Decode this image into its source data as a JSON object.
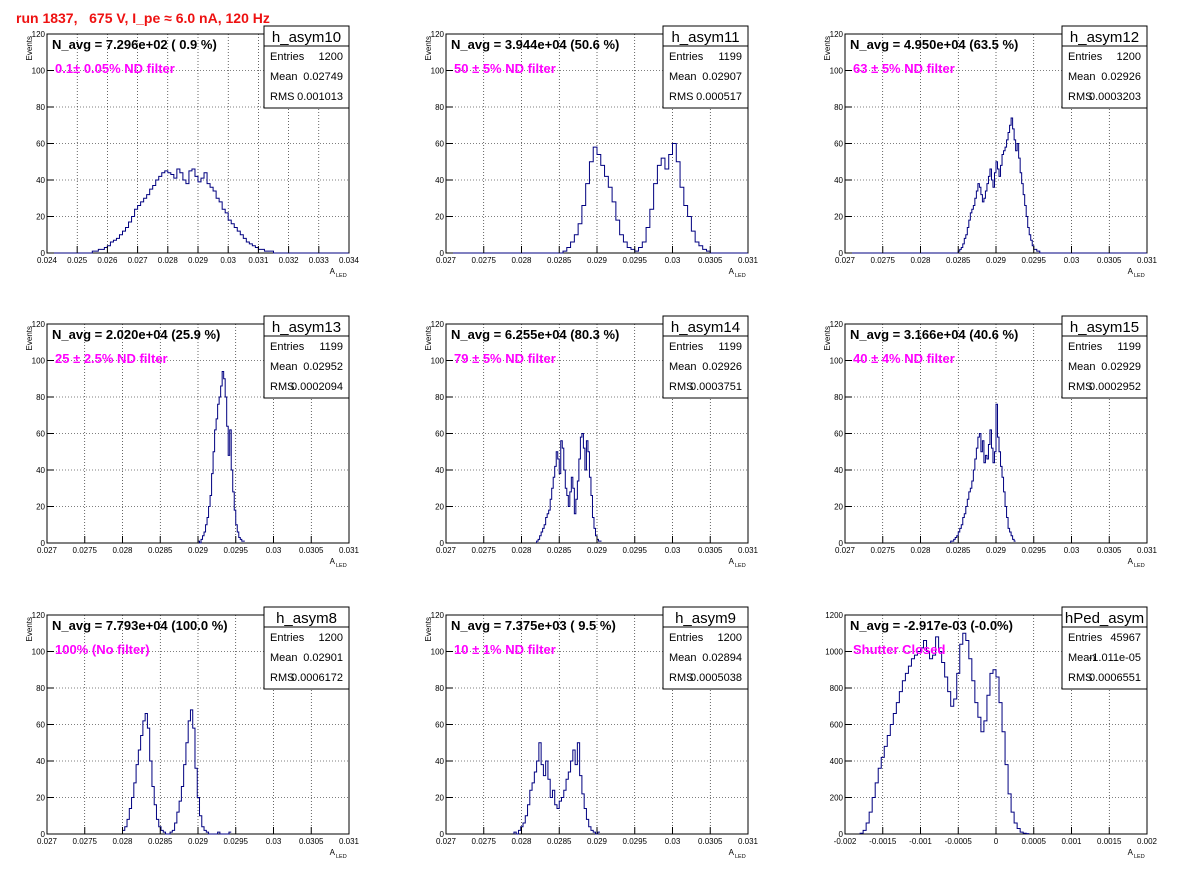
{
  "run_title": "run 1837,   675 V, I_pe ≈ 6.0 nA, 120 Hz",
  "colors": {
    "hist": "#000080",
    "filter_text": "#ff00ff",
    "title": "#ee1111",
    "grid": "#000000"
  },
  "chart_data": [
    {
      "type": "histogram",
      "name": "h_asym10",
      "stats": {
        "Entries": "1200",
        "Mean": "0.02749",
        "RMS": "0.001013"
      },
      "navg_label": "N_avg = 7.296e+02 ( 0.9 %)",
      "filter_label": "0.1± 0.05% ND filter",
      "xlabel": "A",
      "xlabel_sub": "LED",
      "ylabel": "Events",
      "xlim": [
        0.024,
        0.034
      ],
      "ylim": [
        0,
        120
      ],
      "grid": true,
      "xticks": [
        0.024,
        0.025,
        0.026,
        0.027,
        0.028,
        0.029,
        0.03,
        0.031,
        0.032,
        0.033,
        0.034
      ],
      "xtick_labels": [
        "0.024",
        "0.025",
        "0.026",
        "0.027",
        "0.028",
        "0.029",
        "0.03",
        "0.031",
        "0.032",
        "0.033",
        "0.034"
      ],
      "yticks": [
        0,
        20,
        40,
        60,
        80,
        100,
        120
      ],
      "ytick_labels": [
        "0",
        "20",
        "40",
        "60",
        "80",
        "100",
        "120"
      ],
      "bin_start": 0.024,
      "bin_width": 0.0001,
      "counts": [
        0,
        0,
        0,
        0,
        0,
        0,
        0,
        0,
        0,
        0,
        0,
        0,
        0,
        0,
        0,
        1,
        1,
        2,
        2,
        3,
        4,
        6,
        7,
        8,
        10,
        12,
        14,
        17,
        20,
        24,
        26,
        28,
        30,
        32,
        35,
        37,
        40,
        42,
        44,
        45,
        44,
        43,
        41,
        46,
        44,
        40,
        38,
        45,
        46,
        42,
        39,
        41,
        44,
        38,
        36,
        34,
        30,
        28,
        24,
        22,
        18,
        16,
        14,
        12,
        10,
        8,
        6,
        5,
        4,
        3,
        2,
        2,
        1,
        1,
        1,
        0,
        0,
        0,
        0,
        0,
        0,
        0,
        0,
        0,
        0,
        0,
        0,
        0,
        0,
        0,
        0,
        0,
        0,
        0,
        0,
        0,
        0,
        0,
        0,
        0
      ]
    },
    {
      "type": "histogram",
      "name": "h_asym11",
      "stats": {
        "Entries": "1199",
        "Mean": "0.02907",
        "RMS": "0.000517"
      },
      "navg_label": "N_avg = 3.944e+04 (50.6 %)",
      "filter_label": "50 ± 5% ND filter",
      "xlabel": "A",
      "xlabel_sub": "LED",
      "ylabel": "Events",
      "xlim": [
        0.027,
        0.031
      ],
      "ylim": [
        0,
        120
      ],
      "grid": true,
      "xticks": [
        0.027,
        0.0275,
        0.028,
        0.0285,
        0.029,
        0.0295,
        0.03,
        0.0305,
        0.031
      ],
      "xtick_labels": [
        "0.027",
        "0.0275",
        "0.028",
        "0.0285",
        "0.029",
        "0.0295",
        "0.03",
        "0.0305",
        "0.031"
      ],
      "yticks": [
        0,
        20,
        40,
        60,
        80,
        100,
        120
      ],
      "ytick_labels": [
        "0",
        "20",
        "40",
        "60",
        "80",
        "100",
        "120"
      ],
      "bin_start": 0.027,
      "bin_width": 5e-05,
      "counts": [
        0,
        0,
        0,
        0,
        0,
        0,
        0,
        0,
        0,
        0,
        0,
        0,
        0,
        0,
        0,
        0,
        0,
        0,
        0,
        0,
        0,
        0,
        0,
        0,
        0,
        0,
        0,
        0,
        0,
        0,
        0,
        1,
        3,
        6,
        10,
        16,
        26,
        38,
        50,
        58,
        54,
        48,
        42,
        36,
        28,
        18,
        10,
        6,
        3,
        2,
        1,
        3,
        6,
        14,
        24,
        38,
        48,
        52,
        46,
        54,
        60,
        50,
        36,
        26,
        20,
        12,
        6,
        4,
        2,
        1,
        0,
        0,
        0,
        0,
        0,
        0,
        0,
        0,
        0,
        0
      ]
    },
    {
      "type": "histogram",
      "name": "h_asym12",
      "stats": {
        "Entries": "1200",
        "Mean": "0.02926",
        "RMS": "0.0003203"
      },
      "navg_label": "N_avg = 4.950e+04 (63.5 %)",
      "filter_label": "63 ± 5% ND filter",
      "xlabel": "A",
      "xlabel_sub": "LED",
      "ylabel": "Events",
      "xlim": [
        0.027,
        0.031
      ],
      "ylim": [
        0,
        120
      ],
      "grid": true,
      "xticks": [
        0.027,
        0.0275,
        0.028,
        0.0285,
        0.029,
        0.0295,
        0.03,
        0.0305,
        0.031
      ],
      "xtick_labels": [
        "0.027",
        "0.0275",
        "0.028",
        "0.0285",
        "0.029",
        "0.0295",
        "0.03",
        "0.0305",
        "0.031"
      ],
      "yticks": [
        0,
        20,
        40,
        60,
        80,
        100,
        120
      ],
      "ytick_labels": [
        "0",
        "20",
        "40",
        "60",
        "80",
        "100",
        "120"
      ],
      "bin_start": 0.027,
      "bin_width": 2e-05,
      "counts": [
        0,
        0,
        0,
        0,
        0,
        0,
        0,
        0,
        0,
        0,
        0,
        0,
        0,
        0,
        0,
        0,
        0,
        0,
        0,
        0,
        0,
        0,
        0,
        0,
        0,
        0,
        0,
        0,
        0,
        0,
        0,
        0,
        0,
        0,
        0,
        0,
        0,
        0,
        0,
        0,
        0,
        0,
        0,
        0,
        0,
        0,
        0,
        0,
        0,
        0,
        0,
        0,
        0,
        0,
        0,
        0,
        0,
        0,
        0,
        0,
        0,
        0,
        0,
        0,
        0,
        0,
        0,
        0,
        0,
        0,
        0,
        0,
        0,
        0,
        0,
        1,
        2,
        3,
        5,
        8,
        10,
        14,
        18,
        22,
        24,
        26,
        30,
        34,
        38,
        36,
        32,
        28,
        30,
        34,
        38,
        42,
        46,
        40,
        36,
        44,
        50,
        46,
        42,
        48,
        54,
        56,
        58,
        62,
        66,
        70,
        74,
        68,
        62,
        56,
        60,
        52,
        44,
        38,
        32,
        26,
        20,
        14,
        10,
        7,
        4,
        2,
        2,
        1,
        1,
        0,
        0,
        0,
        0,
        0,
        0,
        0,
        0,
        0,
        0,
        0,
        0,
        0,
        0,
        0,
        0,
        0,
        0,
        0,
        0,
        0,
        0,
        0,
        0,
        0,
        0,
        0,
        0,
        0,
        0,
        0,
        0,
        0,
        0,
        0,
        0,
        0,
        0,
        0,
        0,
        0,
        0,
        0,
        0,
        0,
        0,
        0,
        0,
        0,
        0,
        0,
        0,
        0,
        0,
        0,
        0,
        0,
        0,
        0,
        0,
        0,
        0,
        0,
        0,
        0,
        0,
        0,
        0,
        0,
        0,
        0,
        0,
        0,
        0,
        0,
        0,
        0,
        0,
        0,
        0,
        0
      ]
    },
    {
      "type": "histogram",
      "name": "h_asym13",
      "stats": {
        "Entries": "1199",
        "Mean": "0.02952",
        "RMS": "0.0002094"
      },
      "navg_label": "N_avg = 2.020e+04 (25.9 %)",
      "filter_label": "25 ± 2.5% ND filter",
      "xlabel": "A",
      "xlabel_sub": "LED",
      "ylabel": "Events",
      "xlim": [
        0.027,
        0.031
      ],
      "ylim": [
        0,
        120
      ],
      "grid": true,
      "xticks": [
        0.027,
        0.0275,
        0.028,
        0.0285,
        0.029,
        0.0295,
        0.03,
        0.0305,
        0.031
      ],
      "xtick_labels": [
        "0.027",
        "0.0275",
        "0.028",
        "0.0285",
        "0.029",
        "0.0295",
        "0.03",
        "0.0305",
        "0.031"
      ],
      "yticks": [
        0,
        20,
        40,
        60,
        80,
        100,
        120
      ],
      "ytick_labels": [
        "0",
        "20",
        "40",
        "60",
        "80",
        "100",
        "120"
      ],
      "bin_start": 0.029,
      "bin_width": 2e-05,
      "counts": [
        1,
        0,
        2,
        4,
        6,
        10,
        14,
        20,
        26,
        38,
        50,
        62,
        68,
        76,
        80,
        86,
        94,
        90,
        80,
        64,
        48,
        62,
        40,
        28,
        18,
        10,
        6,
        3,
        2,
        1,
        1
      ]
    },
    {
      "type": "histogram",
      "name": "h_asym14",
      "stats": {
        "Entries": "1199",
        "Mean": "0.02926",
        "RMS": "0.0003751"
      },
      "navg_label": "N_avg = 6.255e+04 (80.3 %)",
      "filter_label": "79 ± 5% ND filter",
      "xlabel": "A",
      "xlabel_sub": "LED",
      "ylabel": "Events",
      "xlim": [
        0.027,
        0.031
      ],
      "ylim": [
        0,
        120
      ],
      "grid": true,
      "xticks": [
        0.027,
        0.0275,
        0.028,
        0.0285,
        0.029,
        0.0295,
        0.03,
        0.0305,
        0.031
      ],
      "xtick_labels": [
        "0.027",
        "0.0275",
        "0.028",
        "0.0285",
        "0.029",
        "0.0295",
        "0.03",
        "0.0305",
        "0.031"
      ],
      "yticks": [
        0,
        20,
        40,
        60,
        80,
        100,
        120
      ],
      "ytick_labels": [
        "0",
        "20",
        "40",
        "60",
        "80",
        "100",
        "120"
      ],
      "bin_start": 0.0282,
      "bin_width": 2e-05,
      "counts": [
        1,
        2,
        4,
        6,
        8,
        10,
        14,
        16,
        18,
        24,
        30,
        36,
        42,
        50,
        46,
        38,
        56,
        52,
        40,
        30,
        26,
        20,
        28,
        36,
        30,
        16,
        24,
        34,
        46,
        58,
        60,
        52,
        40,
        56,
        50,
        36,
        26,
        14,
        8,
        4,
        2,
        1,
        1
      ]
    },
    {
      "type": "histogram",
      "name": "h_asym15",
      "stats": {
        "Entries": "1199",
        "Mean": "0.02929",
        "RMS": "0.0002952"
      },
      "navg_label": "N_avg = 3.166e+04 (40.6 %)",
      "filter_label": "40 ± 4% ND filter",
      "xlabel": "A",
      "xlabel_sub": "LED",
      "ylabel": "Events",
      "xlim": [
        0.027,
        0.031
      ],
      "ylim": [
        0,
        120
      ],
      "grid": true,
      "xticks": [
        0.027,
        0.0275,
        0.028,
        0.0285,
        0.029,
        0.0295,
        0.03,
        0.0305,
        0.031
      ],
      "xtick_labels": [
        "0.027",
        "0.0275",
        "0.028",
        "0.0285",
        "0.029",
        "0.0295",
        "0.03",
        "0.0305",
        "0.031"
      ],
      "yticks": [
        0,
        20,
        40,
        60,
        80,
        100,
        120
      ],
      "ytick_labels": [
        "0",
        "20",
        "40",
        "60",
        "80",
        "100",
        "120"
      ],
      "bin_start": 0.0284,
      "bin_width": 2e-05,
      "counts": [
        1,
        1,
        2,
        3,
        4,
        6,
        8,
        10,
        14,
        16,
        20,
        24,
        28,
        30,
        34,
        40,
        46,
        52,
        58,
        60,
        50,
        56,
        44,
        48,
        46,
        54,
        62,
        52,
        44,
        50,
        76,
        58,
        50,
        42,
        36,
        28,
        20,
        14,
        8,
        6,
        4,
        2,
        1
      ]
    },
    {
      "type": "histogram",
      "name": "h_asym8",
      "stats": {
        "Entries": "1200",
        "Mean": "0.02901",
        "RMS": "0.0006172"
      },
      "navg_label": "N_avg = 7.793e+04 (100.0 %)",
      "filter_label": "100% (No filter)",
      "xlabel": "A",
      "xlabel_sub": "LED",
      "ylabel": "Events",
      "xlim": [
        0.027,
        0.031
      ],
      "ylim": [
        0,
        120
      ],
      "grid": true,
      "xticks": [
        0.027,
        0.0275,
        0.028,
        0.0285,
        0.029,
        0.0295,
        0.03,
        0.0305,
        0.031
      ],
      "xtick_labels": [
        "0.027",
        "0.0275",
        "0.028",
        "0.0285",
        "0.029",
        "0.0295",
        "0.03",
        "0.0305",
        "0.031"
      ],
      "yticks": [
        0,
        20,
        40,
        60,
        80,
        100,
        120
      ],
      "ytick_labels": [
        "0",
        "20",
        "40",
        "60",
        "80",
        "100",
        "120"
      ],
      "bin_start": 0.028,
      "bin_width": 3e-05,
      "counts": [
        2,
        4,
        8,
        14,
        20,
        28,
        38,
        46,
        54,
        62,
        66,
        58,
        40,
        26,
        16,
        8,
        4,
        2,
        1,
        0,
        0,
        1,
        2,
        6,
        12,
        18,
        26,
        38,
        50,
        62,
        68,
        58,
        36,
        20,
        10,
        4,
        2,
        1,
        0,
        0,
        0,
        0,
        1,
        0,
        0,
        0,
        0,
        1
      ]
    },
    {
      "type": "histogram",
      "name": "h_asym9",
      "stats": {
        "Entries": "1200",
        "Mean": "0.02894",
        "RMS": "0.0005038"
      },
      "navg_label": "N_avg = 7.375e+03 ( 9.5 %)",
      "filter_label": "10 ± 1% ND filter",
      "xlabel": "A",
      "xlabel_sub": "LED",
      "ylabel": "Events",
      "xlim": [
        0.027,
        0.031
      ],
      "ylim": [
        0,
        120
      ],
      "grid": true,
      "xticks": [
        0.027,
        0.0275,
        0.028,
        0.0285,
        0.029,
        0.0295,
        0.03,
        0.0305,
        0.031
      ],
      "xtick_labels": [
        "0.027",
        "0.0275",
        "0.028",
        "0.0285",
        "0.029",
        "0.0295",
        "0.03",
        "0.0305",
        "0.031"
      ],
      "yticks": [
        0,
        20,
        40,
        60,
        80,
        100,
        120
      ],
      "ytick_labels": [
        "0",
        "20",
        "40",
        "60",
        "80",
        "100",
        "120"
      ],
      "bin_start": 0.0279,
      "bin_width": 3e-05,
      "counts": [
        1,
        0,
        2,
        4,
        6,
        10,
        16,
        24,
        28,
        34,
        40,
        50,
        38,
        32,
        40,
        30,
        20,
        24,
        16,
        14,
        18,
        20,
        24,
        30,
        34,
        40,
        46,
        38,
        50,
        32,
        22,
        14,
        8,
        4,
        2,
        1,
        0,
        1
      ]
    },
    {
      "type": "histogram",
      "name": "hPed_asym",
      "stats": {
        "Entries": "45967",
        "Mean": "-1.011e-05",
        "RMS": "0.0006551"
      },
      "navg_label": "N_avg = -2.917e-03 (-0.0%)",
      "filter_label": "Shutter Closed",
      "xlabel": "A",
      "xlabel_sub": "LED",
      "ylabel": "",
      "xlim": [
        -0.002,
        0.002
      ],
      "ylim": [
        0,
        1200
      ],
      "grid": true,
      "xticks": [
        -0.002,
        -0.0015,
        -0.001,
        -0.0005,
        0,
        0.0005,
        0.001,
        0.0015,
        0.002
      ],
      "xtick_labels": [
        "-0.002",
        "-0.0015",
        "-0.001",
        "-0.0005",
        "0",
        "0.0005",
        "0.001",
        "0.0015",
        "0.002"
      ],
      "yticks": [
        0,
        200,
        400,
        600,
        800,
        1000,
        1200
      ],
      "ytick_labels": [
        "0",
        "200",
        "400",
        "600",
        "800",
        "1000",
        "1200"
      ],
      "bin_start": -0.0018,
      "bin_width": 4e-05,
      "counts": [
        4,
        20,
        60,
        120,
        200,
        280,
        360,
        420,
        480,
        540,
        600,
        660,
        720,
        780,
        840,
        880,
        920,
        960,
        980,
        1000,
        1020,
        1060,
        1000,
        960,
        980,
        1080,
        1000,
        940,
        860,
        780,
        700,
        740,
        880,
        1040,
        1100,
        1060,
        960,
        840,
        720,
        640,
        560,
        620,
        760,
        880,
        900,
        860,
        720,
        560,
        380,
        220,
        120,
        60,
        30,
        10,
        4,
        2
      ]
    }
  ]
}
